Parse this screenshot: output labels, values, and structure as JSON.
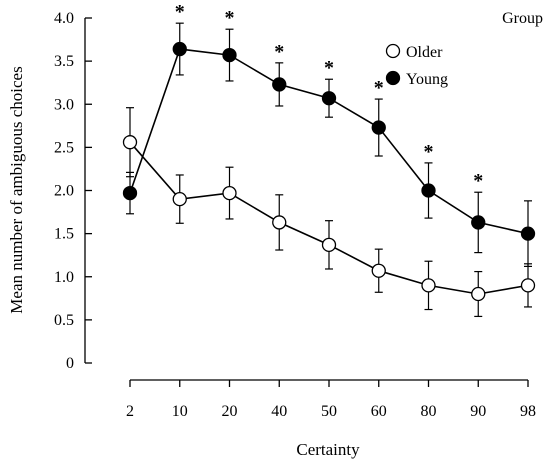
{
  "chart_data": {
    "type": "line",
    "title": "",
    "xlabel": "Certainty",
    "ylabel": "Mean number of ambiguous choices",
    "ylim": [
      0,
      4.0
    ],
    "yticks": [
      "0",
      "0.5",
      "1.0",
      "1.5",
      "2.0",
      "2.5",
      "3.0",
      "3.5",
      "4.0"
    ],
    "categories": [
      "2",
      "10",
      "20",
      "40",
      "50",
      "60",
      "80",
      "90",
      "98"
    ],
    "legend": {
      "title": "Group",
      "placement": "top-right"
    },
    "significance_marker": "*",
    "significant_categories": [
      "10",
      "20",
      "40",
      "50",
      "60",
      "80",
      "90"
    ],
    "series": [
      {
        "name": "Older",
        "marker": "open-circle",
        "color": "#000000",
        "values": [
          2.56,
          1.9,
          1.97,
          1.63,
          1.37,
          1.07,
          0.9,
          0.8,
          0.9
        ],
        "error": [
          0.4,
          0.28,
          0.3,
          0.32,
          0.28,
          0.25,
          0.28,
          0.26,
          0.25
        ]
      },
      {
        "name": "Young",
        "marker": "filled-circle",
        "color": "#000000",
        "values": [
          1.97,
          3.64,
          3.57,
          3.23,
          3.07,
          2.73,
          2.0,
          1.63,
          1.5
        ],
        "error": [
          0.24,
          0.3,
          0.3,
          0.25,
          0.22,
          0.33,
          0.32,
          0.35,
          0.38
        ]
      }
    ]
  }
}
